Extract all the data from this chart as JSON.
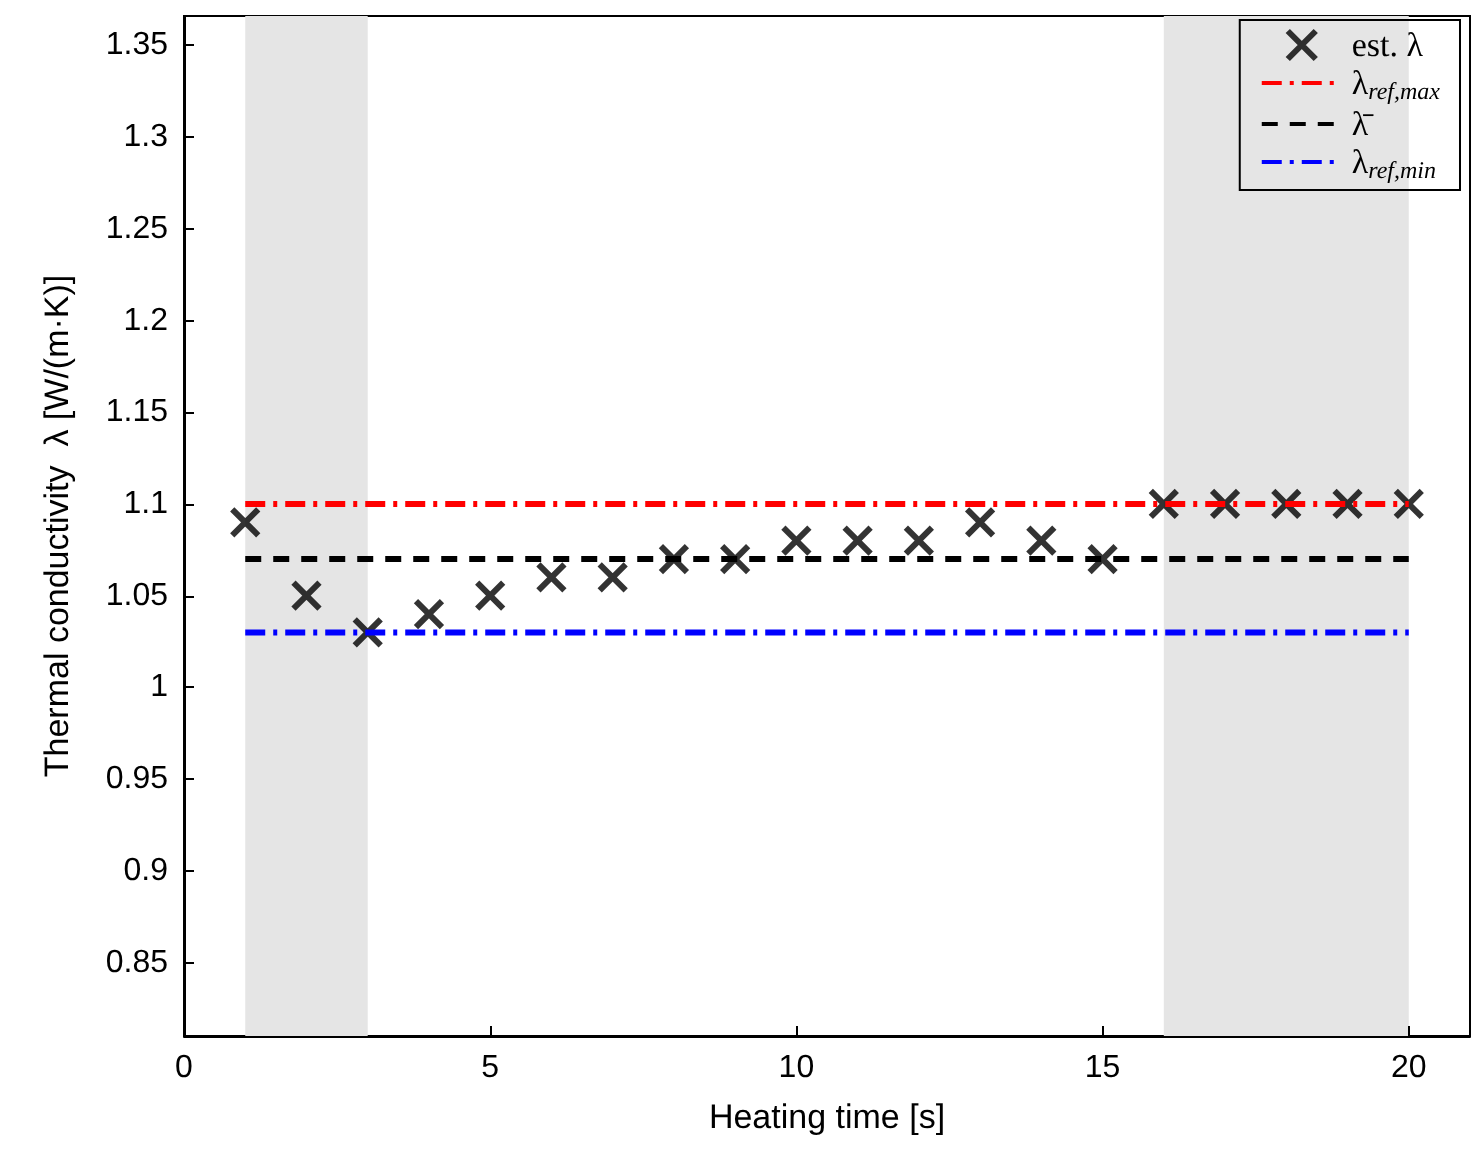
{
  "chart_data": {
    "type": "scatter",
    "xlabel": "Heating time [s]",
    "ylabel": "Thermal conductivity  λ [W/(m·K)]",
    "xlim": [
      0,
      21
    ],
    "xticks": [
      0,
      5,
      10,
      15,
      20
    ],
    "ylim": [
      0.81,
      1.366
    ],
    "yticks": [
      0.85,
      0.9,
      0.95,
      1,
      1.05,
      1.1,
      1.15,
      1.2,
      1.25,
      1.3,
      1.35
    ],
    "grid": false,
    "legend": "top right",
    "bands": [
      {
        "axis": "x",
        "from": 1,
        "to": 3,
        "color": "#e5e5e5"
      },
      {
        "axis": "x",
        "from": 16,
        "to": 20,
        "color": "#e5e5e5"
      }
    ],
    "series": [
      {
        "name": "est. λ",
        "marker": "cross",
        "color": "#000000",
        "x": [
          1,
          2,
          3,
          4,
          5,
          6,
          7,
          8,
          9,
          10,
          11,
          12,
          13,
          14,
          15,
          16,
          17,
          18,
          19,
          20
        ],
        "values": [
          1.09,
          1.05,
          1.03,
          1.04,
          1.05,
          1.06,
          1.06,
          1.07,
          1.07,
          1.08,
          1.08,
          1.08,
          1.09,
          1.08,
          1.07,
          1.1,
          1.1,
          1.1,
          1.1,
          1.1
        ]
      },
      {
        "name": "λ$_{ref,max}$",
        "type": "line",
        "marker": "none",
        "line_style": "dashdot",
        "color": "#ff0000",
        "x": [
          1,
          20
        ],
        "values": [
          1.1,
          1.1
        ]
      },
      {
        "name": "λ̄",
        "type": "line",
        "marker": "none",
        "line_style": "dashed",
        "color": "#000000",
        "x": [
          1,
          20
        ],
        "values": [
          1.07,
          1.07
        ]
      },
      {
        "name": "λ$_{ref,min}$",
        "type": "line",
        "marker": "none",
        "line_style": "dashdot",
        "color": "#0000ff",
        "x": [
          1,
          20
        ],
        "values": [
          1.03,
          1.03
        ]
      }
    ]
  }
}
